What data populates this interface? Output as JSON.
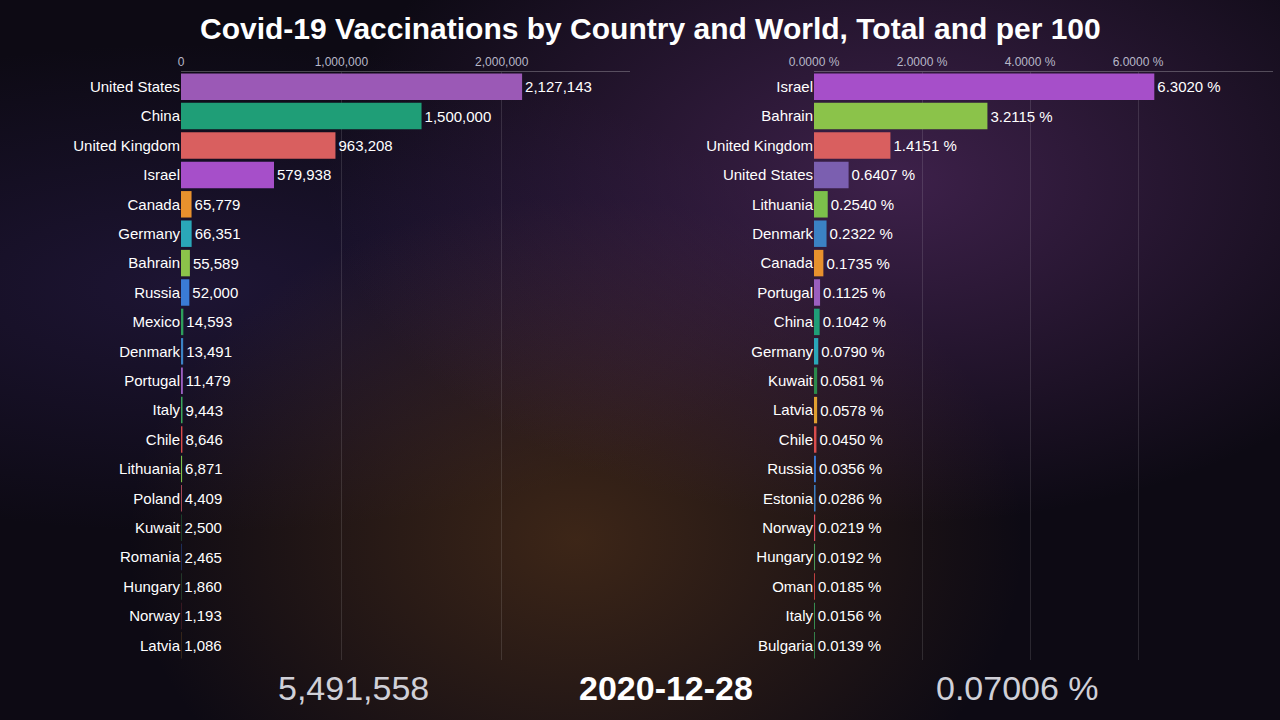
{
  "title": "Covid-19 Vaccinations by Country and World, Total and per 100",
  "date": "2020-12-28",
  "chart_data": [
    {
      "type": "bar",
      "orientation": "horizontal",
      "data_labels": true,
      "grid": true,
      "world_total": "5,491,558",
      "categories": [
        "United States",
        "China",
        "United Kingdom",
        "Israel",
        "Canada",
        "Germany",
        "Bahrain",
        "Russia",
        "Mexico",
        "Denmark",
        "Portugal",
        "Italy",
        "Chile",
        "Lithuania",
        "Poland",
        "Kuwait",
        "Romania",
        "Hungary",
        "Norway",
        "Latvia"
      ],
      "values": [
        2127143,
        1500000,
        963208,
        579938,
        65779,
        66351,
        55589,
        52000,
        14593,
        13491,
        11479,
        9443,
        8646,
        6871,
        4409,
        2500,
        2465,
        1860,
        1193,
        1086
      ],
      "value_labels": [
        "2,127,143",
        "1,500,000",
        "963,208",
        "579,938",
        "65,779",
        "66,351",
        "55,589",
        "52,000",
        "14,593",
        "13,491",
        "11,479",
        "9,443",
        "8,646",
        "6,871",
        "4,409",
        "2,500",
        "2,465",
        "1,860",
        "1,193",
        "1,086"
      ],
      "colors": [
        "#9b59b6",
        "#1f9e77",
        "#d95f5f",
        "#a64fc9",
        "#e8912d",
        "#2aa7b8",
        "#8bc34a",
        "#3a7bd5",
        "#2e9e5b",
        "#3b82c4",
        "#9b5fc0",
        "#3ba55c",
        "#d94c4c",
        "#7cc04b",
        "#e06070",
        "#2b8a4b",
        "#3060c0",
        "#4c9a5a",
        "#d94c5c",
        "#e0a030"
      ],
      "xlim": [
        0,
        2800000
      ],
      "xticks": [
        0,
        {
          "value": 1000000,
          "label": "1,000,000"
        },
        {
          "value": 2000000,
          "label": "2,000,000"
        }
      ]
    },
    {
      "type": "bar",
      "orientation": "horizontal",
      "data_labels": true,
      "grid": true,
      "world_total": "0.07006 %",
      "categories": [
        "Israel",
        "Bahrain",
        "United Kingdom",
        "United States",
        "Lithuania",
        "Denmark",
        "Canada",
        "Portugal",
        "China",
        "Germany",
        "Kuwait",
        "Latvia",
        "Chile",
        "Russia",
        "Estonia",
        "Norway",
        "Hungary",
        "Oman",
        "Italy",
        "Bulgaria"
      ],
      "values": [
        6.302,
        3.2115,
        1.4151,
        0.6407,
        0.254,
        0.2322,
        0.1735,
        0.1125,
        0.1042,
        0.079,
        0.0581,
        0.0578,
        0.045,
        0.0356,
        0.0286,
        0.0219,
        0.0192,
        0.0185,
        0.0156,
        0.0139
      ],
      "value_labels": [
        "6.3020 %",
        "3.2115 %",
        "1.4151 %",
        "0.6407 %",
        "0.2540 %",
        "0.2322 %",
        "0.1735 %",
        "0.1125 %",
        "0.1042 %",
        "0.0790 %",
        "0.0581 %",
        "0.0578 %",
        "0.0450 %",
        "0.0356 %",
        "0.0286 %",
        "0.0219 %",
        "0.0192 %",
        "0.0185 %",
        "0.0156 %",
        "0.0139 %"
      ],
      "colors": [
        "#a64fc9",
        "#8bc34a",
        "#d95f5f",
        "#7b5fb0",
        "#7cc04b",
        "#3b82c4",
        "#e8912d",
        "#9b5fc0",
        "#1f9e77",
        "#2aa7b8",
        "#2b8a4b",
        "#e0a030",
        "#d94c4c",
        "#3a7bd5",
        "#3b7fc4",
        "#d94c5c",
        "#4c9a5a",
        "#c04040",
        "#3ba55c",
        "#3ba55c"
      ],
      "xlim": [
        0,
        8.5
      ],
      "xticks": [
        {
          "value": 0,
          "label": "0.0000 %"
        },
        {
          "value": 2,
          "label": "2.0000 %"
        },
        {
          "value": 4,
          "label": "4.0000 %"
        },
        {
          "value": 6,
          "label": "6.0000 %"
        }
      ]
    }
  ]
}
